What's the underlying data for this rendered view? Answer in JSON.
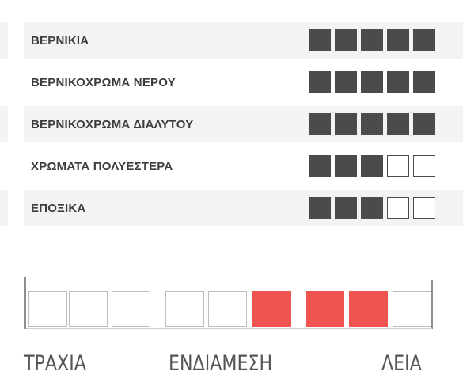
{
  "rows": [
    {
      "label": "ΒΕΡΝΙΚΙΑ",
      "rating": 5,
      "max": 5,
      "shaded": true
    },
    {
      "label": "ΒΕΡΝΙΚΟΧΡΩΜΑ ΝΕΡΟΥ",
      "rating": 5,
      "max": 5,
      "shaded": false
    },
    {
      "label": "ΒΕΡΝΙΚΟΧΡΩΜΑ ΔΙΑΛΥΤΟΥ",
      "rating": 5,
      "max": 5,
      "shaded": true
    },
    {
      "label": "ΧΡΩΜΑΤΑ ΠΟΛΥΕΣΤΕΡΑ",
      "rating": 3,
      "max": 5,
      "shaded": false
    },
    {
      "label": "ΕΠΟΞΙΚΑ",
      "rating": 3,
      "max": 5,
      "shaded": true
    }
  ],
  "scale": {
    "left_label": "ΤΡΑΧΙΑ",
    "middle_label": "ΕΝΔΙΑΜΕΣΗ",
    "right_label": "ΛΕΙΑ",
    "boxes": [
      false,
      false,
      false,
      false,
      false,
      true,
      true,
      true,
      false
    ]
  },
  "colors": {
    "filled_square": "#4b4b4b",
    "row_shade": "#f3f3f3",
    "scale_active": "#ef5450",
    "label_text": "#3d3d3d"
  }
}
